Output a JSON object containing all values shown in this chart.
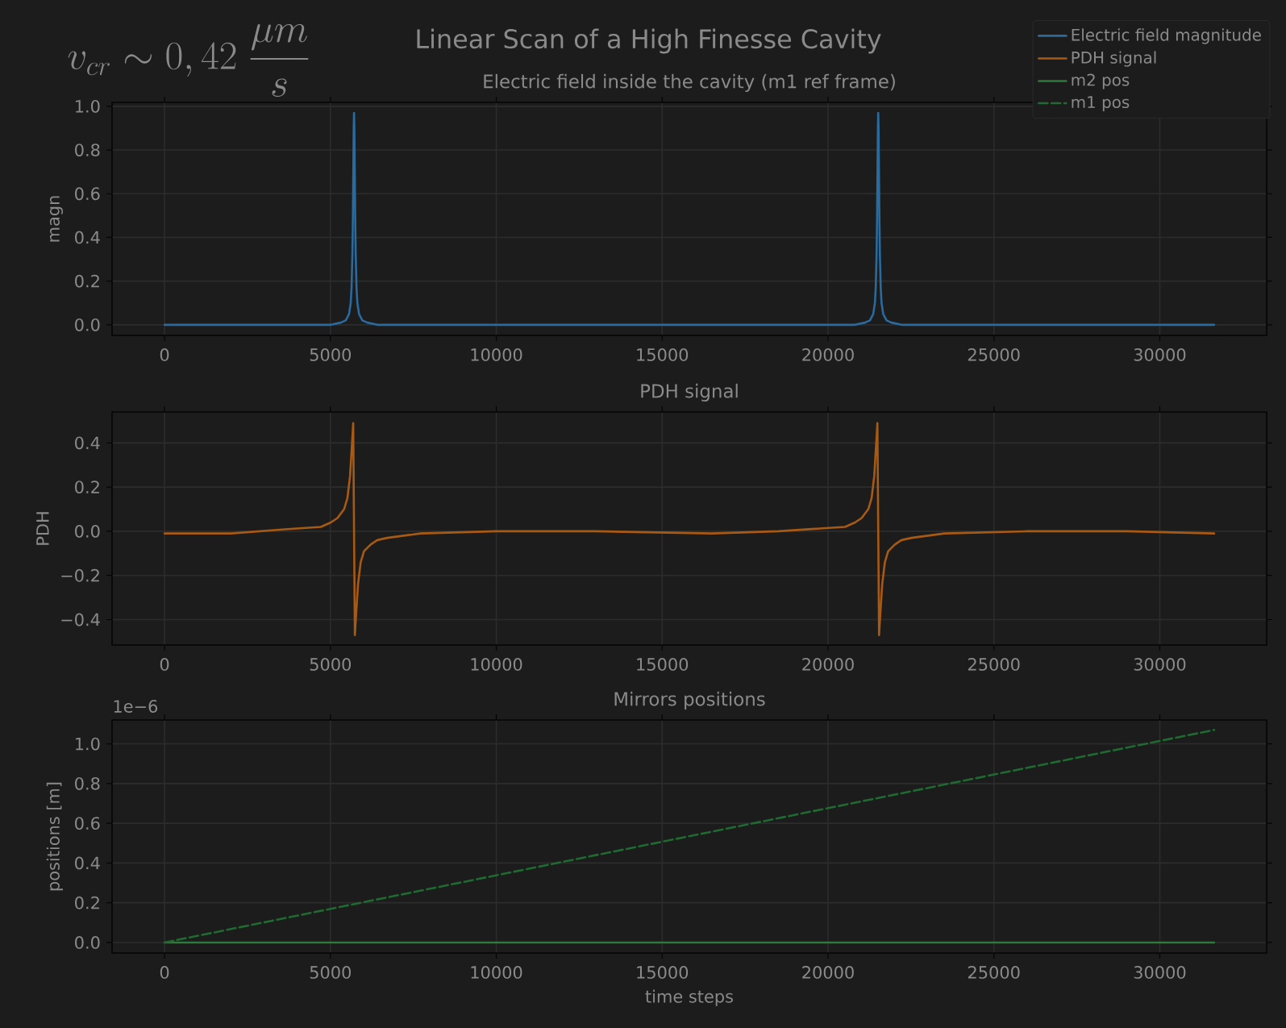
{
  "chart_data": [
    {
      "type": "line",
      "title": "Electric field inside the cavity (m1 ref frame)",
      "ylabel": "magn",
      "annotations": [
        "Linear Scan of a High Finesse Cavity",
        "v_{cr} \\sim 0,42\\;\\frac{\\mu m}{s}"
      ],
      "xlim": [
        -1582,
        33222
      ],
      "ylim": [
        -0.0485,
        1.018
      ],
      "xticks": [
        0,
        5000,
        10000,
        15000,
        20000,
        25000,
        30000
      ],
      "yticks": [
        {
          "value": 0,
          "label": "0.0"
        },
        {
          "value": 0.2,
          "label": "0.2"
        },
        {
          "value": 0.4,
          "label": "0.4"
        },
        {
          "value": 0.6,
          "label": "0.6"
        },
        {
          "value": 0.8,
          "label": "0.8"
        },
        {
          "value": 1,
          "label": "1.0"
        }
      ],
      "grid": true,
      "legend": "top right",
      "series": [
        {
          "name": "Electric field magnitude",
          "color": "#2a6a9c",
          "x": [
            0,
            4212,
            5012,
            5312,
            5462,
            5562,
            5612,
            5637,
            5662,
            5677,
            5692,
            5702,
            5712,
            5722,
            5732,
            5747,
            5762,
            5787,
            5812,
            5862,
            5962,
            6112,
            6412,
            7212,
            13600,
            20013,
            20813,
            21113,
            21263,
            21363,
            21413,
            21438,
            21463,
            21478,
            21493,
            21503,
            21513,
            21523,
            21533,
            21548,
            21563,
            21588,
            21613,
            21663,
            21763,
            21913,
            22213,
            23013,
            31640
          ],
          "values": [
            0,
            0,
            0,
            0.01,
            0.02,
            0.05,
            0.1,
            0.17,
            0.32,
            0.49,
            0.73,
            0.9,
            0.97,
            0.9,
            0.73,
            0.49,
            0.32,
            0.17,
            0.1,
            0.05,
            0.02,
            0.01,
            0,
            0,
            0,
            0,
            0,
            0.01,
            0.02,
            0.05,
            0.1,
            0.17,
            0.32,
            0.49,
            0.73,
            0.9,
            0.97,
            0.9,
            0.73,
            0.49,
            0.32,
            0.17,
            0.1,
            0.05,
            0.02,
            0.01,
            0,
            0,
            0
          ]
        }
      ]
    },
    {
      "type": "line",
      "title": "PDH signal",
      "ylabel": "PDH",
      "xlim": [
        -1582,
        33222
      ],
      "ylim": [
        -0.515,
        0.54
      ],
      "xticks": [
        0,
        5000,
        10000,
        15000,
        20000,
        25000,
        30000
      ],
      "yticks": [
        {
          "value": -0.4,
          "label": "−0.4"
        },
        {
          "value": -0.2,
          "label": "−0.2"
        },
        {
          "value": 0,
          "label": "0.0"
        },
        {
          "value": 0.2,
          "label": "0.2"
        },
        {
          "value": 0.4,
          "label": "0.4"
        }
      ],
      "grid": true,
      "series": [
        {
          "name": "PDH signal",
          "color": "#a85a14",
          "x": [
            0,
            2000,
            3712,
            4712,
            5012,
            5212,
            5412,
            5512,
            5592,
            5652,
            5687,
            5712,
            5737,
            5772,
            5832,
            5912,
            6012,
            6212,
            6412,
            6712,
            7712,
            10000,
            13000,
            16500,
            18500,
            19513,
            20513,
            20813,
            21013,
            21213,
            21313,
            21393,
            21453,
            21488,
            21513,
            21538,
            21573,
            21633,
            21713,
            21813,
            22013,
            22213,
            22513,
            23513,
            26000,
            29000,
            31640
          ],
          "values": [
            -0.01,
            -0.01,
            0.01,
            0.02,
            0.04,
            0.06,
            0.1,
            0.15,
            0.25,
            0.4,
            0.49,
            0,
            -0.47,
            -0.38,
            -0.24,
            -0.14,
            -0.09,
            -0.06,
            -0.04,
            -0.03,
            -0.01,
            0,
            0,
            -0.01,
            0,
            0.01,
            0.02,
            0.04,
            0.06,
            0.1,
            0.15,
            0.25,
            0.4,
            0.49,
            0,
            -0.47,
            -0.38,
            -0.24,
            -0.14,
            -0.09,
            -0.06,
            -0.04,
            -0.03,
            -0.01,
            0,
            0,
            -0.01
          ]
        }
      ]
    },
    {
      "type": "line",
      "title": "Mirrors positions",
      "xlabel": "time steps",
      "ylabel": "positions [m]",
      "annotations": [
        "1e−6"
      ],
      "xlim": [
        -1582,
        33222
      ],
      "ylim": [
        -0.053,
        1.12
      ],
      "xticks": [
        0,
        5000,
        10000,
        15000,
        20000,
        25000,
        30000
      ],
      "yticks": [
        {
          "value": 0,
          "label": "0.0"
        },
        {
          "value": 0.2,
          "label": "0.2"
        },
        {
          "value": 0.4,
          "label": "0.4"
        },
        {
          "value": 0.6,
          "label": "0.6"
        },
        {
          "value": 0.8,
          "label": "0.8"
        },
        {
          "value": 1,
          "label": "1.0"
        }
      ],
      "grid": true,
      "series": [
        {
          "name": "m2 pos",
          "color": "#2e7a3a",
          "x": [
            0,
            31640
          ],
          "values": [
            0,
            0
          ]
        },
        {
          "name": "m1 pos",
          "color": "#1f6a30",
          "line_style": "dashed",
          "x": [
            0,
            31640
          ],
          "values": [
            0,
            1.07
          ]
        }
      ]
    }
  ]
}
